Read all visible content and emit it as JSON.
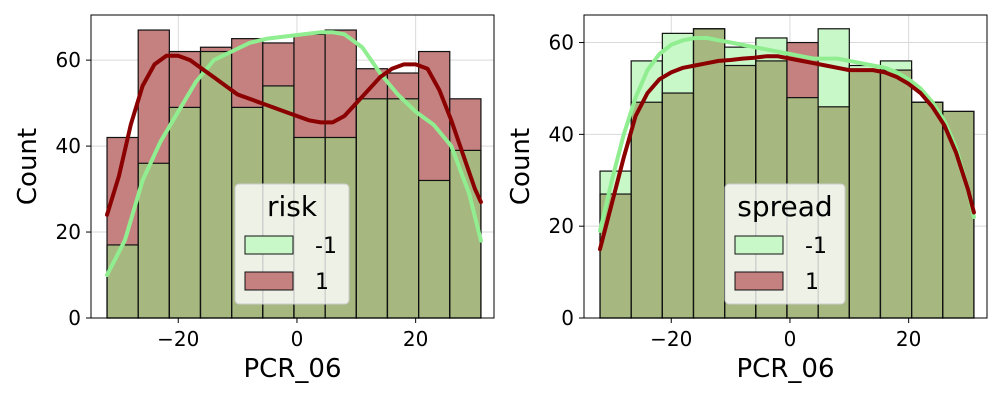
{
  "chart_data": [
    {
      "type": "histogram",
      "xlabel": "PCR_06",
      "ylabel": "Count",
      "xlim": [
        -34.7,
        33.2
      ],
      "ylim": [
        0,
        70.5
      ],
      "xticks": [
        -20,
        0,
        20
      ],
      "xtick_labels": [
        "−20",
        "0",
        "20"
      ],
      "yticks": [
        0,
        20,
        40,
        60
      ],
      "bin_edges": [
        -32,
        -26.75,
        -21.5,
        -16.25,
        -11,
        -5.75,
        -0.5,
        4.75,
        10,
        15.25,
        20.5,
        25.75,
        31
      ],
      "grid": true,
      "legend": {
        "title": "risk",
        "placement": "lower-center"
      },
      "series": [
        {
          "name": "-1",
          "color": "#90EE90",
          "counts": [
            17,
            36,
            49,
            62,
            49,
            54,
            42,
            42,
            51,
            51,
            32,
            39
          ],
          "kde": [
            [
              -32,
              10
            ],
            [
              -29,
              18
            ],
            [
              -26,
              32
            ],
            [
              -23,
              41
            ],
            [
              -20,
              48
            ],
            [
              -17,
              55
            ],
            [
              -14,
              60
            ],
            [
              -11,
              62
            ],
            [
              -8,
              64
            ],
            [
              -5,
              65
            ],
            [
              -2,
              65.5
            ],
            [
              1,
              66
            ],
            [
              4,
              66.5
            ],
            [
              6,
              66.5
            ],
            [
              8,
              66
            ],
            [
              11,
              63
            ],
            [
              14,
              57
            ],
            [
              17,
              52
            ],
            [
              20,
              48
            ],
            [
              23,
              45
            ],
            [
              26,
              40
            ],
            [
              29,
              29
            ],
            [
              31,
              18
            ]
          ]
        },
        {
          "name": "1",
          "color": "#8B0000",
          "counts": [
            42,
            67,
            62,
            63,
            65,
            64,
            66,
            67,
            58,
            57,
            62,
            51
          ],
          "kde": [
            [
              -32,
              24
            ],
            [
              -30,
              33
            ],
            [
              -28,
              45
            ],
            [
              -26,
              54
            ],
            [
              -24,
              59
            ],
            [
              -22,
              61
            ],
            [
              -20,
              61
            ],
            [
              -18,
              60
            ],
            [
              -16,
              58
            ],
            [
              -14,
              56
            ],
            [
              -12,
              54
            ],
            [
              -10,
              52
            ],
            [
              -8,
              51
            ],
            [
              -6,
              50
            ],
            [
              -4,
              49
            ],
            [
              -2,
              48
            ],
            [
              0,
              47
            ],
            [
              2,
              46
            ],
            [
              4,
              45.5
            ],
            [
              6,
              45.5
            ],
            [
              8,
              47
            ],
            [
              10,
              50
            ],
            [
              12,
              53
            ],
            [
              14,
              56
            ],
            [
              16,
              58
            ],
            [
              18,
              59
            ],
            [
              20,
              59
            ],
            [
              22,
              58
            ],
            [
              24,
              53
            ],
            [
              26,
              46
            ],
            [
              28,
              38
            ],
            [
              30,
              30
            ],
            [
              31,
              27
            ]
          ]
        }
      ]
    },
    {
      "type": "histogram",
      "xlabel": "PCR_06",
      "ylabel": "Count",
      "xlim": [
        -34.7,
        33.2
      ],
      "ylim": [
        0,
        66
      ],
      "xticks": [
        -20,
        0,
        20
      ],
      "xtick_labels": [
        "−20",
        "0",
        "20"
      ],
      "yticks": [
        0,
        20,
        40,
        60
      ],
      "bin_edges": [
        -32,
        -26.75,
        -21.5,
        -16.25,
        -11,
        -5.75,
        -0.5,
        4.75,
        10,
        15.25,
        20.5,
        25.75,
        31
      ],
      "grid": true,
      "legend": {
        "title": "spread",
        "placement": "lower-center"
      },
      "series": [
        {
          "name": "-1",
          "color": "#90EE90",
          "counts": [
            32,
            56,
            62,
            63,
            59,
            61,
            48,
            63,
            55,
            56,
            47,
            45
          ],
          "kde": [
            [
              -32,
              19
            ],
            [
              -30,
              30
            ],
            [
              -28,
              40
            ],
            [
              -26,
              48
            ],
            [
              -24,
              54
            ],
            [
              -22,
              57.5
            ],
            [
              -20,
              59.5
            ],
            [
              -18,
              60.5
            ],
            [
              -16,
              61
            ],
            [
              -14,
              61
            ],
            [
              -12,
              60.5
            ],
            [
              -10,
              60
            ],
            [
              -8,
              59.5
            ],
            [
              -6,
              59
            ],
            [
              -4,
              58.5
            ],
            [
              -2,
              58
            ],
            [
              0,
              57.5
            ],
            [
              2,
              57
            ],
            [
              4,
              56.5
            ],
            [
              6,
              56.5
            ],
            [
              8,
              56.5
            ],
            [
              10,
              56
            ],
            [
              12,
              55.5
            ],
            [
              14,
              55
            ],
            [
              16,
              54.5
            ],
            [
              18,
              53.5
            ],
            [
              20,
              52
            ],
            [
              22,
              50
            ],
            [
              24,
              47
            ],
            [
              26,
              43
            ],
            [
              28,
              37
            ],
            [
              30,
              28
            ],
            [
              31,
              22
            ]
          ]
        },
        {
          "name": "1",
          "color": "#8B0000",
          "counts": [
            27,
            47,
            49,
            63,
            55,
            56,
            60,
            46,
            54,
            54,
            47,
            45
          ],
          "kde": [
            [
              -32,
              15
            ],
            [
              -30,
              25
            ],
            [
              -28,
              35
            ],
            [
              -26,
              44
            ],
            [
              -24,
              49
            ],
            [
              -22,
              52
            ],
            [
              -20,
              53.5
            ],
            [
              -18,
              54.5
            ],
            [
              -16,
              55
            ],
            [
              -14,
              55.5
            ],
            [
              -12,
              56
            ],
            [
              -10,
              56.2
            ],
            [
              -8,
              56.5
            ],
            [
              -6,
              56.7
            ],
            [
              -4,
              57
            ],
            [
              -2,
              57
            ],
            [
              0,
              56.5
            ],
            [
              2,
              56
            ],
            [
              4,
              55.5
            ],
            [
              6,
              55
            ],
            [
              8,
              54.5
            ],
            [
              10,
              54
            ],
            [
              12,
              54
            ],
            [
              14,
              54
            ],
            [
              16,
              53.5
            ],
            [
              18,
              52.5
            ],
            [
              20,
              51
            ],
            [
              22,
              49
            ],
            [
              24,
              46
            ],
            [
              26,
              42
            ],
            [
              28,
              36
            ],
            [
              30,
              28
            ],
            [
              31,
              23
            ]
          ]
        }
      ]
    }
  ]
}
